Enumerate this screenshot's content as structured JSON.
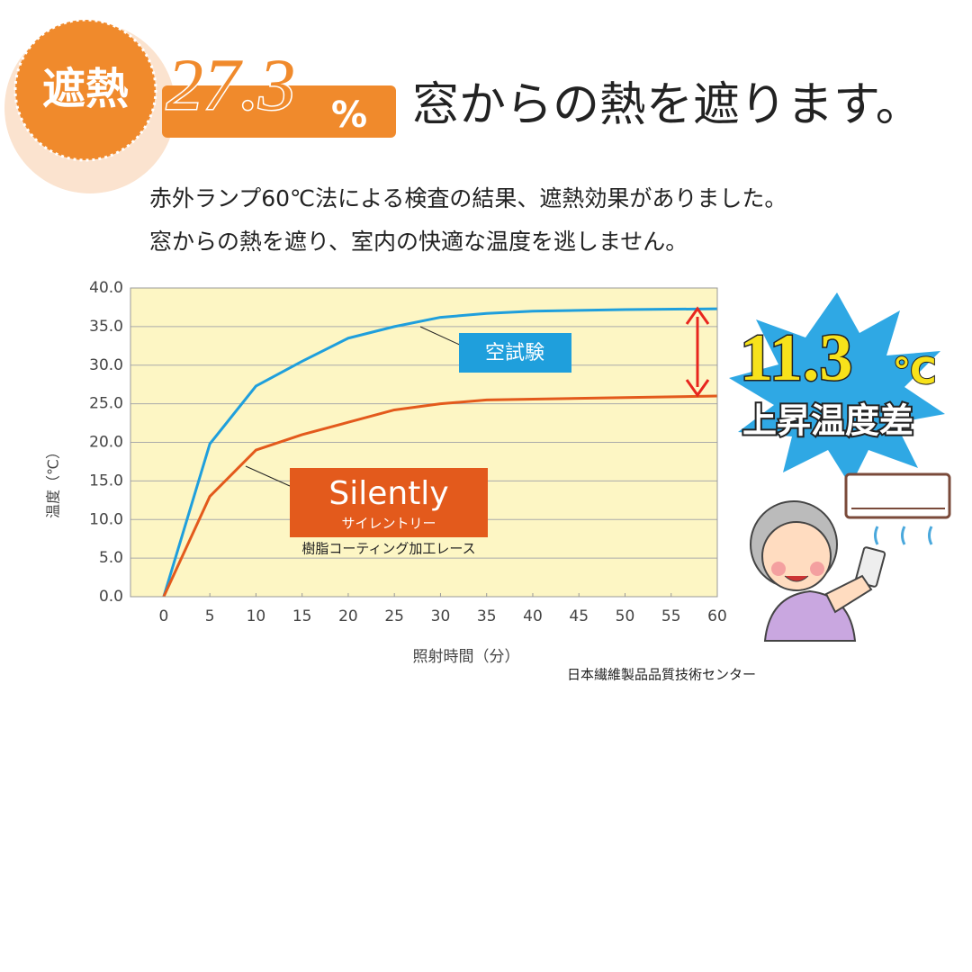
{
  "header": {
    "badge": "遮熱",
    "rate": 27.3,
    "rate_unit": "%",
    "title": "窓からの熱を遮ります。",
    "lines": [
      "赤外ランプ60℃法による検査の結果、遮熱効果がありました。",
      "窓からの熱を遮り、室内の快適な温度を逃しません。"
    ]
  },
  "chart_data": {
    "type": "line",
    "x": [
      0,
      5,
      10,
      15,
      20,
      25,
      30,
      35,
      40,
      50,
      60
    ],
    "series": [
      {
        "name": "空試験",
        "color": "#1f9fdc",
        "values": [
          0,
          19.8,
          27.3,
          30.5,
          33.5,
          35,
          36.2,
          36.7,
          37,
          37.2,
          37.3
        ]
      },
      {
        "name": "Silently",
        "color": "#e35a1c",
        "values": [
          0,
          13,
          19,
          21,
          22.6,
          24.2,
          25,
          25.5,
          25.6,
          25.8,
          26
        ]
      }
    ],
    "annotations": [
      "サイレントリー",
      "樹脂コーティング加工レース"
    ],
    "xlim": [
      -3.6,
      60
    ],
    "xticks": [
      0,
      5,
      10,
      15,
      20,
      25,
      30,
      35,
      40,
      45,
      50,
      55,
      60
    ],
    "ylim": [
      0,
      40
    ],
    "yticks": [
      {
        "value": 0,
        "label": "0.0"
      },
      {
        "value": 5,
        "label": "5.0"
      },
      {
        "value": 10,
        "label": "10.0"
      },
      {
        "value": 15,
        "label": "15.0"
      },
      {
        "value": 20,
        "label": "20.0"
      },
      {
        "value": 25,
        "label": "25.0"
      },
      {
        "value": 30,
        "label": "30.0"
      },
      {
        "value": 35,
        "label": "35.0"
      },
      {
        "value": 40,
        "label": "40.0"
      }
    ],
    "grid": true,
    "y_label": "温度（℃）",
    "x_label": "照射時間（分）",
    "source": "日本繊維製品品質技術センター",
    "difference": {
      "value": 11.3,
      "unit": "℃",
      "label": "上昇温度差"
    }
  }
}
